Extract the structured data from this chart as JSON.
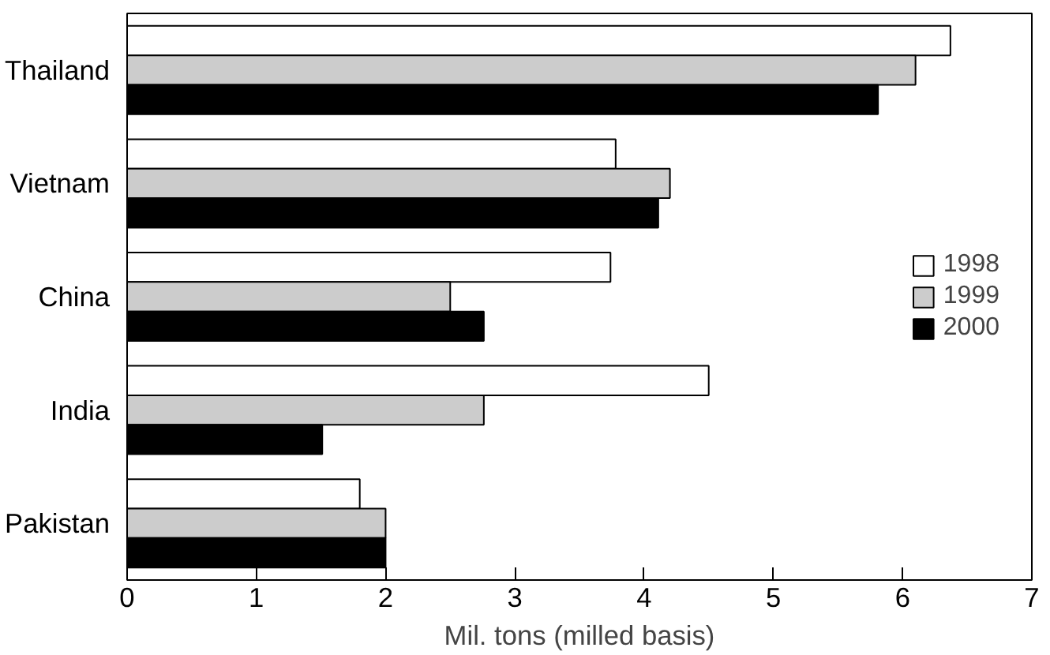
{
  "chart_data": {
    "type": "bar",
    "orientation": "horizontal",
    "xlabel": "Mil. tons (milled basis)",
    "categories": [
      "Thailand",
      "Vietnam",
      "China",
      "India",
      "Pakistan"
    ],
    "series": [
      {
        "name": "1998",
        "color": "#ffffff",
        "values": [
          6.37,
          3.78,
          3.74,
          4.5,
          1.8
        ]
      },
      {
        "name": "1999",
        "color": "#cccccc",
        "values": [
          6.1,
          4.2,
          2.5,
          2.76,
          2.0
        ]
      },
      {
        "name": "2000",
        "color": "#000000",
        "values": [
          5.81,
          4.11,
          2.76,
          1.51,
          2.0
        ]
      }
    ],
    "xlim": [
      0,
      7
    ],
    "xticks": [
      0,
      1,
      2,
      3,
      4,
      5,
      6,
      7
    ],
    "grid": false,
    "legend": "right"
  }
}
